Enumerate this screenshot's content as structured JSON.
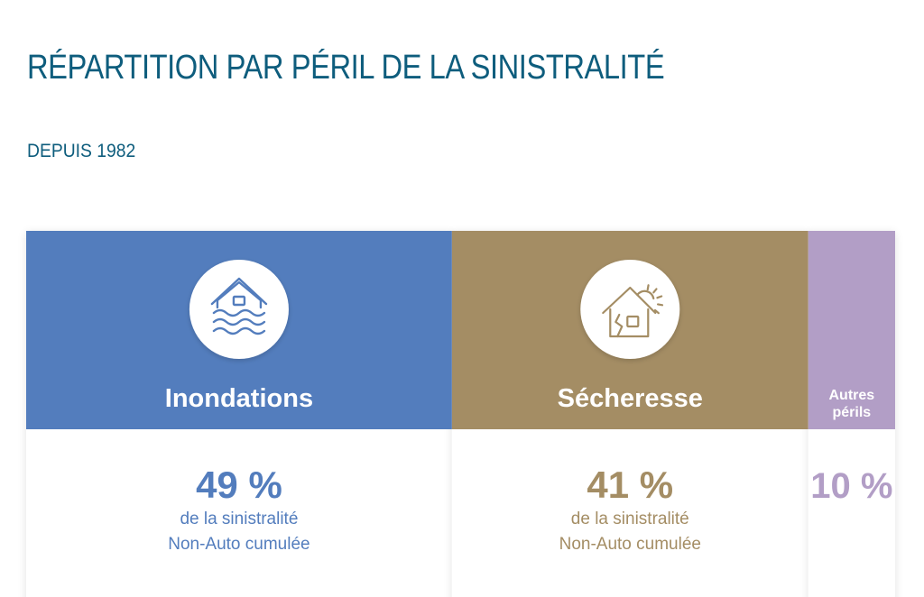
{
  "title": "RÉPARTITION PAR PÉRIL DE LA SINISTRALITÉ",
  "subtitle": "DEPUIS 1982",
  "colors": {
    "heading": "#0e5d7d",
    "inondations": "#537dbd",
    "secheresse": "#a48d64",
    "autres": "#b29ec6"
  },
  "chart_data": {
    "type": "bar",
    "orientation": "horizontal-stacked-100",
    "unit": "%",
    "title": "RÉPARTITION PAR PÉRIL DE LA SINISTRALITÉ",
    "subtitle": "DEPUIS 1982",
    "categories": [
      "Inondations",
      "Sécheresse",
      "Autres périls"
    ],
    "values": [
      49,
      41,
      10
    ],
    "value_labels": [
      "49 %",
      "41 %",
      "10 %"
    ],
    "captions": [
      [
        "de la sinistralité",
        "Non-Auto cumulée"
      ],
      [
        "de la sinistralité",
        "Non-Auto cumulée"
      ],
      []
    ],
    "icons": [
      "flooded-house-icon",
      "cracked-house-sun-icon",
      ""
    ],
    "colors": [
      "#537dbd",
      "#a48d64",
      "#b29ec6"
    ],
    "grid": false,
    "legend": "none"
  }
}
